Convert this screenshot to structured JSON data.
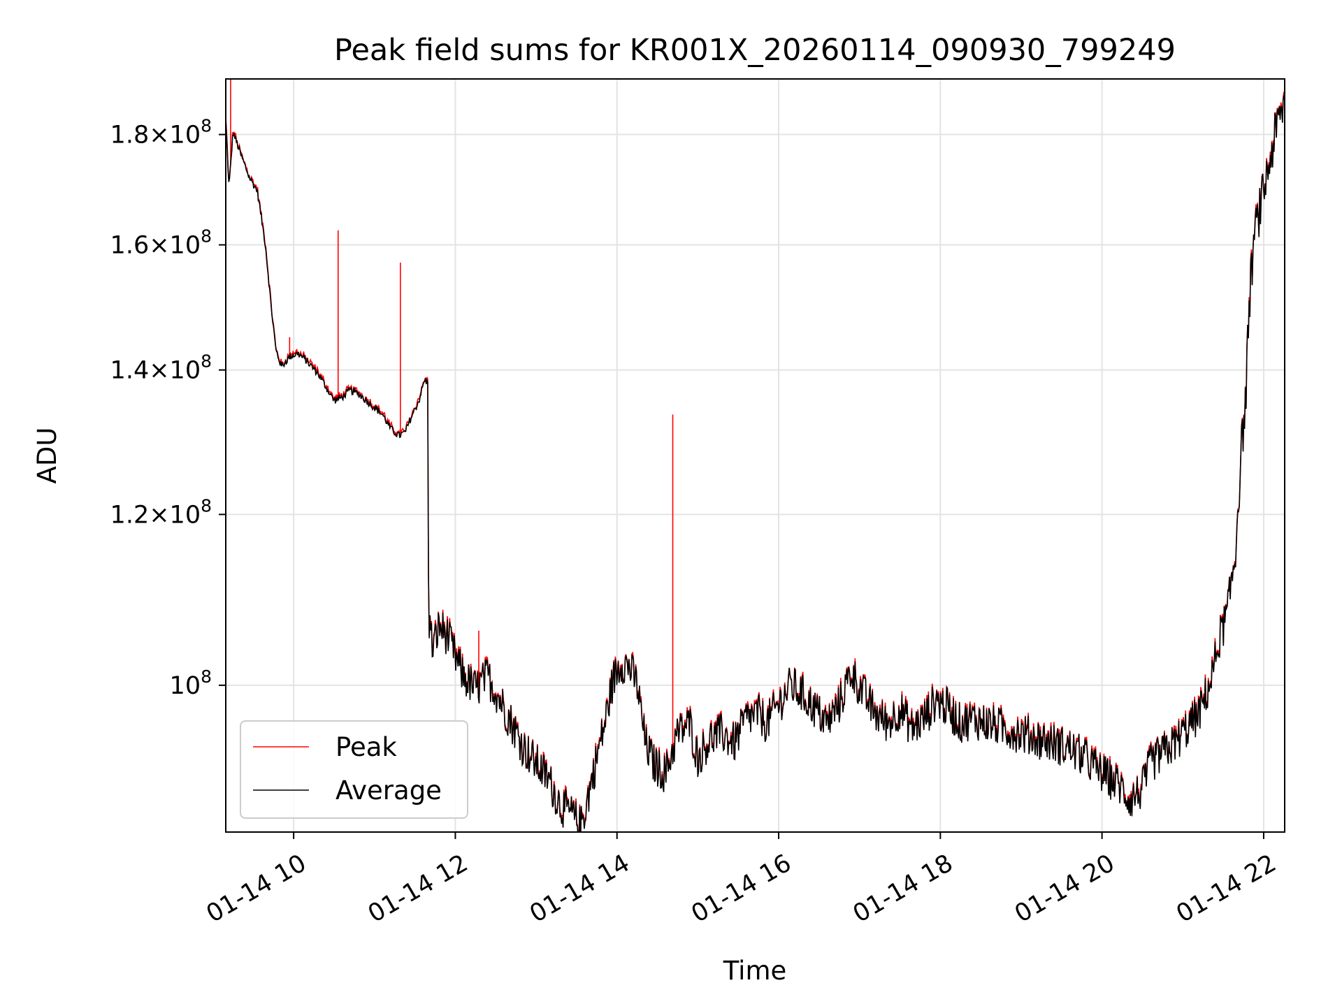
{
  "chart_data": {
    "type": "line",
    "title": "Peak field sums for KR001X_20260114_090930_799249",
    "xlabel": "Time",
    "ylabel": "ADU",
    "yscale": "log",
    "grid": true,
    "legend_position": "lower-left",
    "x_range_hours": [
      9.16,
      22.26
    ],
    "y_range": [
      85500000,
      191000000
    ],
    "x_ticks": [
      {
        "hour": 10,
        "label": "01-14 10"
      },
      {
        "hour": 12,
        "label": "01-14 12"
      },
      {
        "hour": 14,
        "label": "01-14 14"
      },
      {
        "hour": 16,
        "label": "01-14 16"
      },
      {
        "hour": 18,
        "label": "01-14 18"
      },
      {
        "hour": 20,
        "label": "01-14 20"
      },
      {
        "hour": 22,
        "label": "01-14 22"
      }
    ],
    "y_ticks": [
      {
        "value": 100000000,
        "mantissa": "",
        "exponent": "8"
      },
      {
        "value": 120000000,
        "mantissa": "1.2",
        "exponent": "8"
      },
      {
        "value": 140000000,
        "mantissa": "1.4",
        "exponent": "8"
      },
      {
        "value": 160000000,
        "mantissa": "1.6",
        "exponent": "8"
      },
      {
        "value": 180000000,
        "mantissa": "1.8",
        "exponent": "8"
      }
    ],
    "series": [
      {
        "name": "Peak",
        "color": "#ff0000"
      },
      {
        "name": "Average",
        "color": "#000000"
      }
    ],
    "average_points": [
      [
        9.15,
        186000000
      ],
      [
        9.2,
        170000000
      ],
      [
        9.25,
        180500000
      ],
      [
        9.35,
        176000000
      ],
      [
        9.45,
        172000000
      ],
      [
        9.55,
        169500000
      ],
      [
        9.65,
        160000000
      ],
      [
        9.72,
        150000000
      ],
      [
        9.78,
        143000000
      ],
      [
        9.85,
        140500000
      ],
      [
        9.95,
        142000000
      ],
      [
        10.05,
        142500000
      ],
      [
        10.15,
        141500000
      ],
      [
        10.3,
        139500000
      ],
      [
        10.4,
        137500000
      ],
      [
        10.5,
        135500000
      ],
      [
        10.6,
        136000000
      ],
      [
        10.7,
        137000000
      ],
      [
        10.8,
        136500000
      ],
      [
        10.9,
        135500000
      ],
      [
        11.0,
        134500000
      ],
      [
        11.1,
        133500000
      ],
      [
        11.2,
        131500000
      ],
      [
        11.3,
        130500000
      ],
      [
        11.38,
        131000000
      ],
      [
        11.45,
        133000000
      ],
      [
        11.55,
        135500000
      ],
      [
        11.62,
        138500000
      ],
      [
        11.66,
        138000000
      ],
      [
        11.67,
        107500000
      ],
      [
        11.72,
        104000000
      ],
      [
        11.8,
        106500000
      ],
      [
        11.9,
        105500000
      ],
      [
        12.0,
        103000000
      ],
      [
        12.1,
        101000000
      ],
      [
        12.25,
        99500000
      ],
      [
        12.4,
        101000000
      ],
      [
        12.55,
        98500000
      ],
      [
        12.7,
        96000000
      ],
      [
        12.85,
        93500000
      ],
      [
        13.0,
        92000000
      ],
      [
        13.15,
        90500000
      ],
      [
        13.3,
        88000000
      ],
      [
        13.45,
        87000000
      ],
      [
        13.55,
        86000000
      ],
      [
        13.62,
        88000000
      ],
      [
        13.72,
        91500000
      ],
      [
        13.85,
        96000000
      ],
      [
        13.95,
        100500000
      ],
      [
        14.05,
        102500000
      ],
      [
        14.15,
        102000000
      ],
      [
        14.25,
        100000000
      ],
      [
        14.35,
        94000000
      ],
      [
        14.45,
        92000000
      ],
      [
        14.6,
        91000000
      ],
      [
        14.75,
        95000000
      ],
      [
        14.9,
        96000000
      ],
      [
        15.0,
        92500000
      ],
      [
        15.15,
        94500000
      ],
      [
        15.3,
        95000000
      ],
      [
        15.45,
        94000000
      ],
      [
        15.6,
        96500000
      ],
      [
        15.75,
        97000000
      ],
      [
        15.85,
        96000000
      ],
      [
        16.0,
        98000000
      ],
      [
        16.15,
        100000000
      ],
      [
        16.3,
        99000000
      ],
      [
        16.45,
        97500000
      ],
      [
        16.6,
        96000000
      ],
      [
        16.75,
        98000000
      ],
      [
        16.9,
        101500000
      ],
      [
        17.05,
        99000000
      ],
      [
        17.2,
        97000000
      ],
      [
        17.35,
        96000000
      ],
      [
        17.5,
        97500000
      ],
      [
        17.65,
        95500000
      ],
      [
        17.8,
        96500000
      ],
      [
        17.95,
        98500000
      ],
      [
        18.1,
        97500000
      ],
      [
        18.25,
        96000000
      ],
      [
        18.4,
        96500000
      ],
      [
        18.6,
        96000000
      ],
      [
        18.8,
        95500000
      ],
      [
        19.0,
        95000000
      ],
      [
        19.2,
        94500000
      ],
      [
        19.4,
        94000000
      ],
      [
        19.6,
        93500000
      ],
      [
        19.8,
        92500000
      ],
      [
        20.0,
        91000000
      ],
      [
        20.2,
        90000000
      ],
      [
        20.35,
        88500000
      ],
      [
        20.5,
        89500000
      ],
      [
        20.6,
        92000000
      ],
      [
        20.75,
        93000000
      ],
      [
        20.9,
        94000000
      ],
      [
        21.05,
        95500000
      ],
      [
        21.2,
        97000000
      ],
      [
        21.35,
        100500000
      ],
      [
        21.45,
        105000000
      ],
      [
        21.55,
        108000000
      ],
      [
        21.65,
        115000000
      ],
      [
        21.72,
        128000000
      ],
      [
        21.78,
        136000000
      ],
      [
        21.82,
        150000000
      ],
      [
        21.88,
        161000000
      ],
      [
        21.95,
        166000000
      ],
      [
        22.05,
        173000000
      ],
      [
        22.15,
        180500000
      ],
      [
        22.25,
        186000000
      ]
    ],
    "peak_spikes": [
      {
        "hour": 9.22,
        "value": 191000000
      },
      {
        "hour": 9.78,
        "value": 143500000
      },
      {
        "hour": 9.95,
        "value": 145000000
      },
      {
        "hour": 10.55,
        "value": 162500000
      },
      {
        "hour": 11.32,
        "value": 157000000
      },
      {
        "hour": 12.29,
        "value": 106000000
      },
      {
        "hour": 14.69,
        "value": 133500000
      }
    ]
  }
}
